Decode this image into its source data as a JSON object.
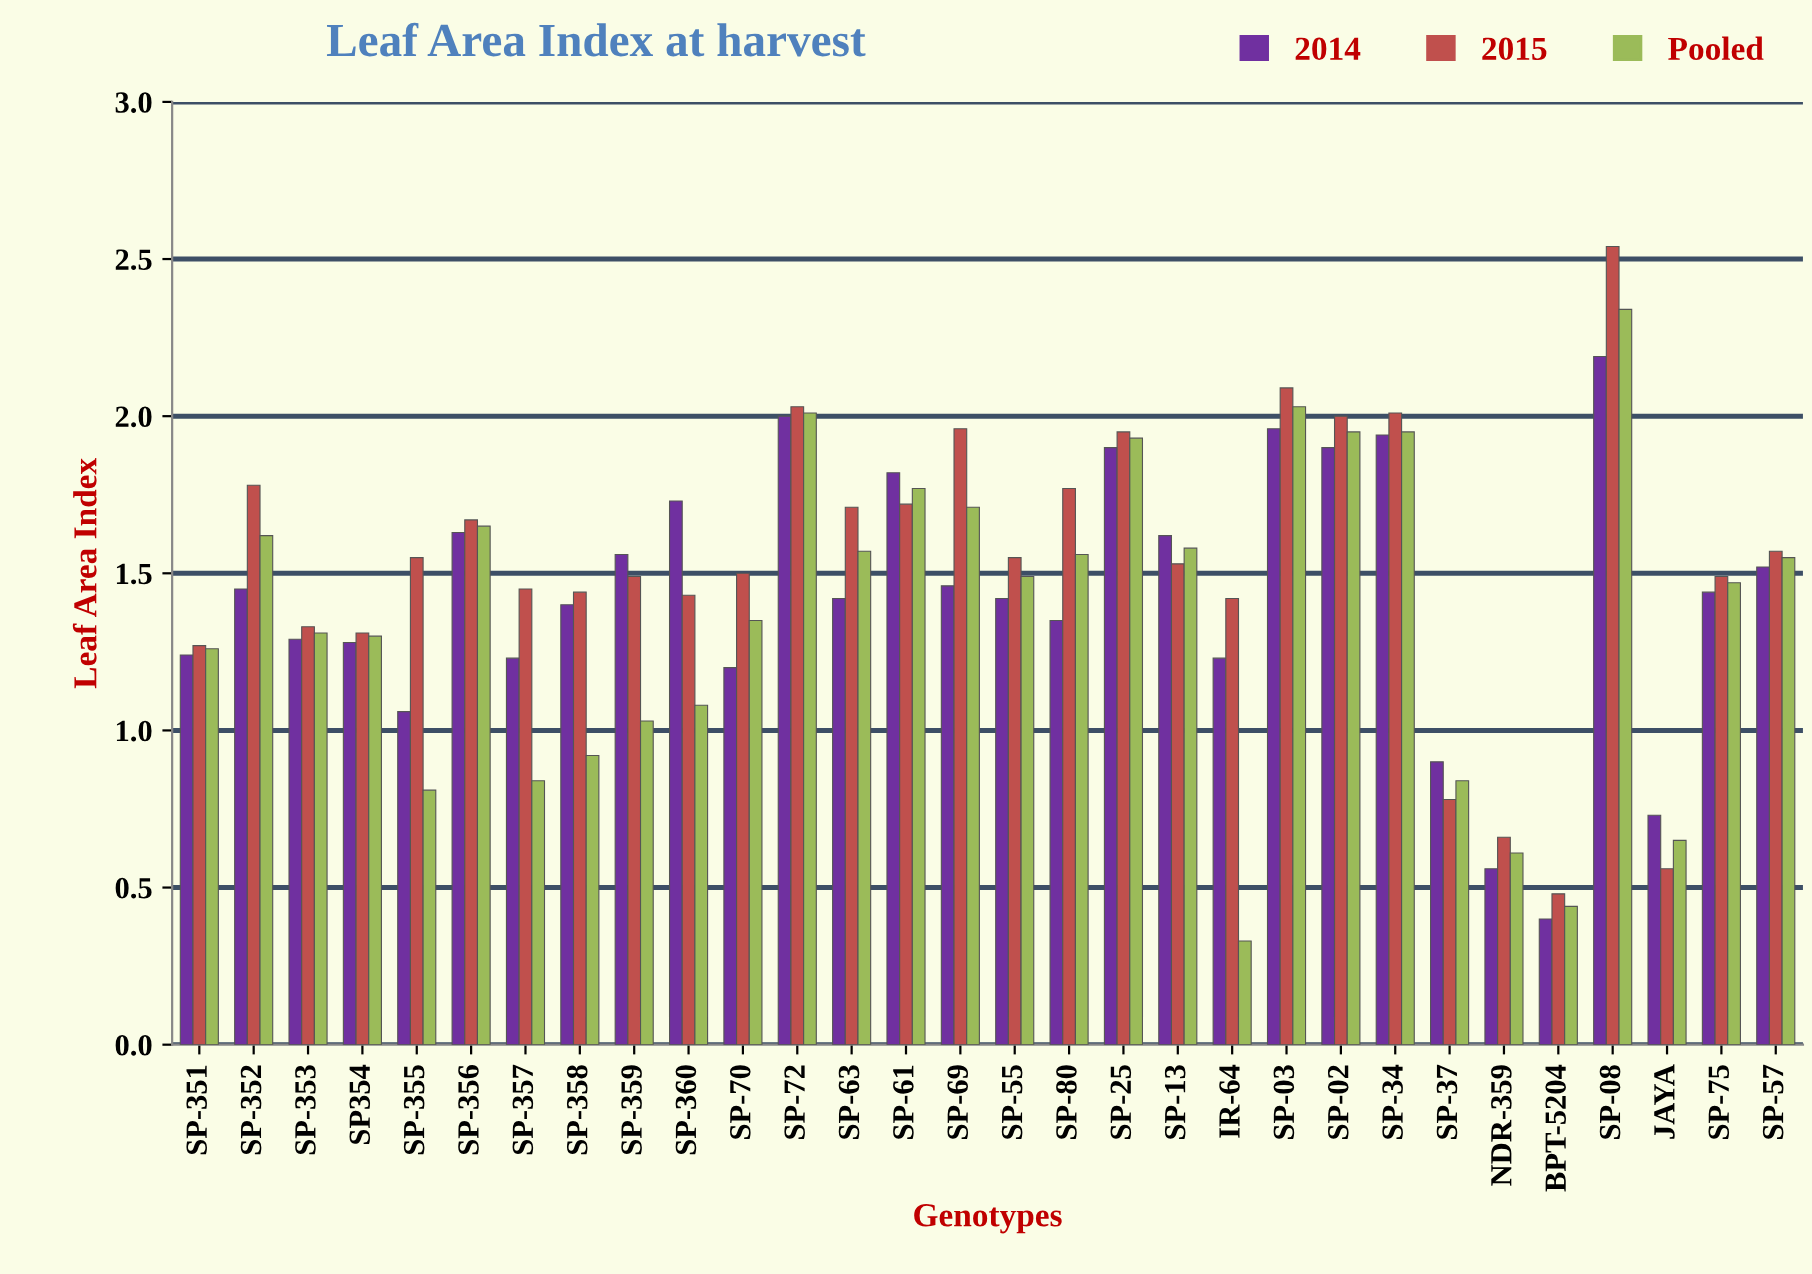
{
  "chart_data": {
    "type": "bar",
    "title": "Leaf Area Index at harvest",
    "xlabel": "Genotypes",
    "ylabel": "Leaf Area Index",
    "categories": [
      "SP-351",
      "SP-352",
      "SP-353",
      "SP354",
      "SP-355",
      "SP-356",
      "SP-357",
      "SP-358",
      "SP-359",
      "SP-360",
      "SP-70",
      "SP-72",
      "SP-63",
      "SP-61",
      "SP-69",
      "SP-55",
      "SP-80",
      "SP-25",
      "SP-13",
      "IR-64",
      "SP-03",
      "SP-02",
      "SP-34",
      "SP-37",
      "NDR-359",
      "BPT-5204",
      "SP-08",
      "JAYA",
      "SP-75",
      "SP-57"
    ],
    "series": [
      {
        "name": "2014",
        "color": "#7030a0",
        "values": [
          1.24,
          1.45,
          1.29,
          1.28,
          1.06,
          1.63,
          1.23,
          1.4,
          1.56,
          1.73,
          1.2,
          2.0,
          1.42,
          1.82,
          1.46,
          1.42,
          1.35,
          1.9,
          1.62,
          1.23,
          1.96,
          1.9,
          1.94,
          0.9,
          0.56,
          0.4,
          2.19,
          0.73,
          1.44,
          1.52
        ]
      },
      {
        "name": "2015",
        "color": "#c0504d",
        "values": [
          1.27,
          1.78,
          1.33,
          1.31,
          1.55,
          1.67,
          1.45,
          1.44,
          1.49,
          1.43,
          1.5,
          2.03,
          1.71,
          1.72,
          1.96,
          1.55,
          1.77,
          1.95,
          1.53,
          1.42,
          2.09,
          2.0,
          2.01,
          0.78,
          0.66,
          0.48,
          2.54,
          0.56,
          1.49,
          1.57
        ]
      },
      {
        "name": "Pooled",
        "color": "#9bbb59",
        "values": [
          1.26,
          1.62,
          1.31,
          1.3,
          0.81,
          1.65,
          0.84,
          0.92,
          1.03,
          1.08,
          1.35,
          2.01,
          1.57,
          1.77,
          1.71,
          1.49,
          1.56,
          1.93,
          1.58,
          0.33,
          2.03,
          1.95,
          1.95,
          0.84,
          0.61,
          0.44,
          2.34,
          0.65,
          1.47,
          1.55
        ]
      }
    ],
    "ylim": [
      0,
      3.0
    ],
    "yticks": [
      {
        "value": 0,
        "label": "0.0"
      },
      {
        "value": 0.5,
        "label": "0.5"
      },
      {
        "value": 1.0,
        "label": "1.0"
      },
      {
        "value": 1.5,
        "label": "1.5"
      },
      {
        "value": 2.0,
        "label": "2.0"
      },
      {
        "value": 2.5,
        "label": "2.5"
      },
      {
        "value": 3.0,
        "label": "3.0"
      }
    ],
    "grid": "y",
    "legend": "top right"
  }
}
